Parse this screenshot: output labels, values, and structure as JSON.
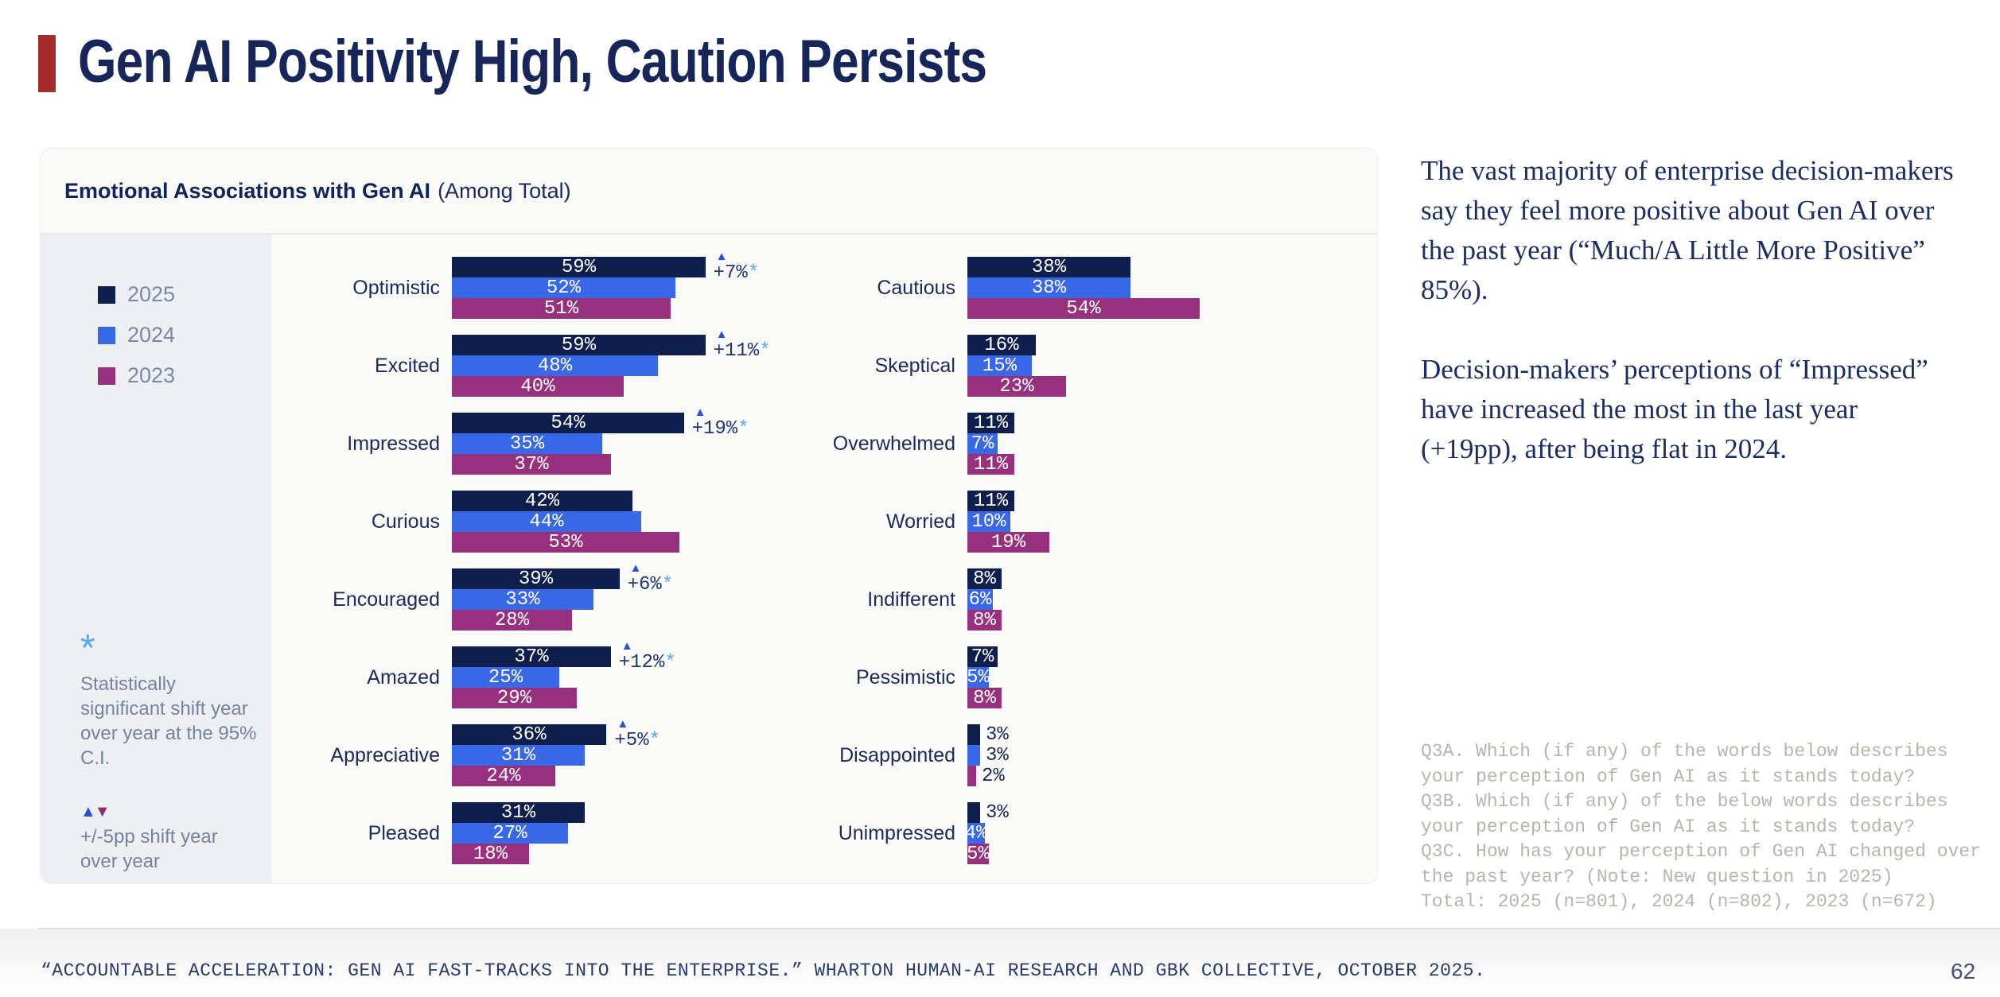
{
  "slide": {
    "title": "Gen AI Positivity High, Caution Persists",
    "page_number": "62",
    "source_line": "“ACCOUNTABLE ACCELERATION: GEN AI FAST-TRACKS INTO THE ENTERPRISE.” WHARTON HUMAN-AI RESEARCH AND GBK COLLECTIVE, OCTOBER 2025.",
    "accent_color": "#a32b2b",
    "title_color": "#16265b"
  },
  "chart_card": {
    "title_bold": "Emotional Associations with Gen AI",
    "title_regular": "(Among Total)",
    "notes": {
      "star": "*",
      "significance_text": "Statistically significant shift year over year at the 95% C.I.",
      "triangle_up": "▲",
      "triangle_down": "▼",
      "shift_text": "+/-5pp shift year over year"
    }
  },
  "chart_data": {
    "type": "bar",
    "orientation": "horizontal-grouped",
    "unit": "%",
    "title": "Emotional Associations with Gen AI (Among Total)",
    "legend_position": "left",
    "grid": false,
    "xlim": [
      0,
      60
    ],
    "value_label_outside_threshold": 3,
    "series": [
      {
        "name": "2025",
        "color": "#0f1f4d"
      },
      {
        "name": "2024",
        "color": "#3968e6"
      },
      {
        "name": "2023",
        "color": "#97317e"
      }
    ],
    "columns": [
      {
        "name": "positive-emotions",
        "rows": [
          {
            "category": "Optimistic",
            "values": [
              59,
              52,
              51
            ],
            "yoy_shift": "+7%",
            "significant": true
          },
          {
            "category": "Excited",
            "values": [
              59,
              48,
              40
            ],
            "yoy_shift": "+11%",
            "significant": true
          },
          {
            "category": "Impressed",
            "values": [
              54,
              35,
              37
            ],
            "yoy_shift": "+19%",
            "significant": true
          },
          {
            "category": "Curious",
            "values": [
              42,
              44,
              53
            ],
            "yoy_shift": null,
            "significant": false
          },
          {
            "category": "Encouraged",
            "values": [
              39,
              33,
              28
            ],
            "yoy_shift": "+6%",
            "significant": true
          },
          {
            "category": "Amazed",
            "values": [
              37,
              25,
              29
            ],
            "yoy_shift": "+12%",
            "significant": true
          },
          {
            "category": "Appreciative",
            "values": [
              36,
              31,
              24
            ],
            "yoy_shift": "+5%",
            "significant": true
          },
          {
            "category": "Pleased",
            "values": [
              31,
              27,
              18
            ],
            "yoy_shift": null,
            "significant": false
          }
        ]
      },
      {
        "name": "negative-emotions",
        "rows": [
          {
            "category": "Cautious",
            "values": [
              38,
              38,
              54
            ],
            "yoy_shift": null,
            "significant": false
          },
          {
            "category": "Skeptical",
            "values": [
              16,
              15,
              23
            ],
            "yoy_shift": null,
            "significant": false
          },
          {
            "category": "Overwhelmed",
            "values": [
              11,
              7,
              11
            ],
            "yoy_shift": null,
            "significant": false
          },
          {
            "category": "Worried",
            "values": [
              11,
              10,
              19
            ],
            "yoy_shift": null,
            "significant": false
          },
          {
            "category": "Indifferent",
            "values": [
              8,
              6,
              8
            ],
            "yoy_shift": null,
            "significant": false
          },
          {
            "category": "Pessimistic",
            "values": [
              7,
              5,
              8
            ],
            "yoy_shift": null,
            "significant": false
          },
          {
            "category": "Disappointed",
            "values": [
              3,
              3,
              2
            ],
            "yoy_shift": null,
            "significant": false
          },
          {
            "category": "Unimpressed",
            "values": [
              3,
              4,
              5
            ],
            "yoy_shift": null,
            "significant": false
          }
        ]
      }
    ]
  },
  "insight": {
    "paragraph_1": "The vast majority of enterprise decision-makers say they feel more positive about Gen AI over the past year (“Much/A Little More Positive” 85%).",
    "paragraph_2": "Decision-makers’ perceptions of “Impressed” have increased the most in the last year (+19pp), after being flat in 2024."
  },
  "qnote": {
    "lines": [
      "Q3A. Which (if any) of the words below describes your perception of Gen AI as it stands today?",
      "Q3B. Which (if any) of the below words describes your perception of Gen AI as it stands today?",
      "Q3C. How has your perception of Gen AI changed over the past year? (Note: New question in 2025)",
      "Total: 2025 (n=801), 2024 (n=802), 2023 (n=672)"
    ]
  }
}
